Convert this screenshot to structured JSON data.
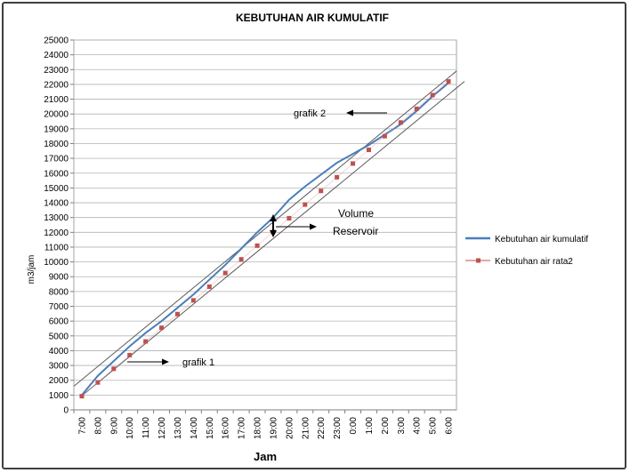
{
  "chart_data": {
    "type": "line",
    "title": "KEBUTUHAN AIR KUMULATIF",
    "xlabel": "Jam",
    "ylabel": "m3/jam",
    "ylim": [
      0,
      25000
    ],
    "ytick_step": 1000,
    "grid": true,
    "legend_position": "right",
    "categories": [
      "7:00",
      "8:00",
      "9:00",
      "10:00",
      "11:00",
      "12:00",
      "13:00",
      "14:00",
      "15:00",
      "16:00",
      "17:00",
      "18:00",
      "19:00",
      "20:00",
      "21:00",
      "22:00",
      "23:00",
      "0:00",
      "1:00",
      "2:00",
      "3:00",
      "4:00",
      "5:00",
      "6:00"
    ],
    "series": [
      {
        "name": "Kebutuhan air kumulatif",
        "color": "#4a7ebb",
        "style": "line",
        "values": [
          1000,
          2300,
          3300,
          4300,
          5200,
          6000,
          6900,
          7800,
          8800,
          9800,
          10900,
          12000,
          13000,
          14200,
          15100,
          15900,
          16700,
          17300,
          17900,
          18600,
          19300,
          20200,
          21200,
          22100
        ]
      },
      {
        "name": "Kebutuhan air rata2",
        "color": "#c0504d",
        "style": "markers",
        "values": [
          925,
          1850,
          2775,
          3700,
          4625,
          5550,
          6475,
          7400,
          8325,
          9250,
          10175,
          11100,
          12025,
          12950,
          13875,
          14800,
          15725,
          16650,
          17575,
          18500,
          19425,
          20350,
          21275,
          22200
        ]
      }
    ],
    "annotations": {
      "grafik2": "grafik  2",
      "grafik1": "grafik 1",
      "volume": "Volume",
      "reservoir": "Reservoir"
    },
    "annotation_lines": [
      {
        "name": "upper-tangent-line",
        "from": [
          0,
          1600
        ],
        "to": [
          24,
          22900
        ]
      },
      {
        "name": "lower-tangent-line",
        "from": [
          0.5,
          950
        ],
        "to": [
          24.5,
          22200
        ]
      }
    ]
  }
}
